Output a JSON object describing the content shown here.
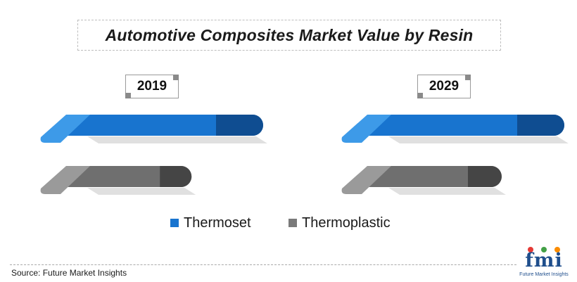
{
  "title": "Automotive Composites Market Value by Resin",
  "source": "Source: Future Market Insights",
  "logo": {
    "letters": "fmi",
    "caption": "Future Market Insights"
  },
  "colors": {
    "thermoset_light": "#3d9ae8",
    "thermoset_mid": "#1874cf",
    "thermoset_dark": "#0f4d91",
    "thermoplastic_light": "#9a9a9a",
    "thermoplastic_mid": "#6f6f6f",
    "thermoplastic_dark": "#454545"
  },
  "legend": [
    {
      "label": "Thermoset",
      "color": "#1874cf"
    },
    {
      "label": "Thermoplastic",
      "color": "#7a7a7a"
    }
  ],
  "chart_data": {
    "type": "bar",
    "title": "Automotive Composites Market Value by Resin",
    "categories": [
      "2019",
      "2029"
    ],
    "series": [
      {
        "name": "Thermoset",
        "values": [
          100,
          100
        ]
      },
      {
        "name": "Thermoplastic",
        "values": [
          68,
          72
        ]
      }
    ],
    "value_labels_shown": false,
    "legend_position": "bottom"
  }
}
